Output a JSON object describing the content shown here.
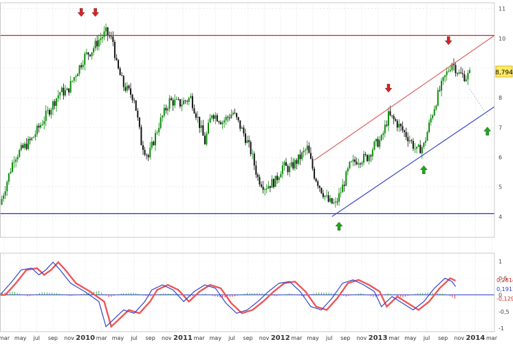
{
  "chart_data": [
    {
      "type": "candlestick",
      "ylim": [
        3.3,
        11.2
      ],
      "y_ticks": [
        "4",
        "5",
        "6",
        "7",
        "8",
        "9",
        "10",
        "11"
      ],
      "current_price": "8,794",
      "colors": {
        "up": "#0a8a0a",
        "down": "#111111",
        "resistance": "#cc2222",
        "support": "#1f2ecc",
        "channel_top": "#e06060",
        "channel_bottom": "#3a44cc",
        "signal_down": "#dd2222",
        "signal_up": "#1aaa1a"
      },
      "series_path": [
        [
          0,
          4.4
        ],
        [
          4,
          6.0
        ],
        [
          9,
          6.6
        ],
        [
          14,
          7.6
        ],
        [
          17,
          8.2
        ],
        [
          19,
          8.2
        ],
        [
          21,
          8.7
        ],
        [
          24,
          9.4
        ],
        [
          26,
          9.6
        ],
        [
          28,
          9.95
        ],
        [
          30,
          10.2
        ],
        [
          32,
          9.9
        ],
        [
          33,
          9.1
        ],
        [
          35,
          8.4
        ],
        [
          38,
          8.0
        ],
        [
          40,
          6.5
        ],
        [
          42,
          6.0
        ],
        [
          45,
          7.1
        ],
        [
          48,
          7.9
        ],
        [
          51,
          7.8
        ],
        [
          54,
          8.0
        ],
        [
          56,
          7.3
        ],
        [
          58,
          6.5
        ],
        [
          60,
          7.5
        ],
        [
          63,
          7.2
        ],
        [
          66,
          7.5
        ],
        [
          69,
          6.8
        ],
        [
          71,
          6.2
        ],
        [
          73,
          5.3
        ],
        [
          75,
          5.0
        ],
        [
          78,
          5.2
        ],
        [
          80,
          5.7
        ],
        [
          82,
          5.6
        ],
        [
          85,
          6.0
        ],
        [
          87,
          6.3
        ],
        [
          89,
          5.4
        ],
        [
          91,
          4.9
        ],
        [
          93,
          4.5
        ],
        [
          95,
          4.4
        ],
        [
          97,
          5.0
        ],
        [
          99,
          5.7
        ],
        [
          101,
          5.9
        ],
        [
          104,
          6.0
        ],
        [
          106,
          6.4
        ],
        [
          108,
          6.6
        ],
        [
          110,
          7.4
        ],
        [
          112,
          7.2
        ],
        [
          114,
          6.9
        ],
        [
          116,
          6.6
        ],
        [
          118,
          6.2
        ],
        [
          120,
          6.4
        ],
        [
          122,
          7.3
        ],
        [
          124,
          8.1
        ],
        [
          126,
          8.7
        ],
        [
          128,
          9.2
        ],
        [
          130,
          8.8
        ],
        [
          132,
          8.7
        ],
        [
          133,
          8.8
        ]
      ],
      "arrows": [
        {
          "dir": "down",
          "x": 23,
          "y": 10.85
        },
        {
          "dir": "down",
          "x": 27,
          "y": 10.85
        },
        {
          "dir": "down",
          "x": 110,
          "y": 8.3
        },
        {
          "dir": "down",
          "x": 127,
          "y": 9.9
        },
        {
          "dir": "up",
          "x": 96,
          "y": 3.7
        },
        {
          "dir": "up",
          "x": 120,
          "y": 5.6
        },
        {
          "dir": "up",
          "x": 138,
          "y": 6.9
        }
      ],
      "lines": [
        {
          "name": "resistance",
          "x1": 0,
          "y1": 10.1,
          "x2": 140,
          "y2": 10.1
        },
        {
          "name": "support",
          "x1": 0,
          "y1": 4.1,
          "x2": 140,
          "y2": 4.1
        },
        {
          "name": "channel_top",
          "x1": 89,
          "y1": 5.9,
          "x2": 140,
          "y2": 10.1
        },
        {
          "name": "channel_bottom",
          "x1": 94,
          "y1": 4.0,
          "x2": 140,
          "y2": 7.7
        }
      ]
    },
    {
      "type": "macd",
      "ylim": [
        -1.1,
        1.25
      ],
      "y_ticks": [
        "1",
        "0,5",
        "0",
        "-0,5",
        "-1"
      ],
      "labels": [
        "0,2814",
        "0,1911",
        "-0,129"
      ],
      "macd_path": [
        [
          0,
          0.0
        ],
        [
          3,
          0.35
        ],
        [
          6,
          0.75
        ],
        [
          9,
          0.8
        ],
        [
          11,
          0.6
        ],
        [
          13,
          0.75
        ],
        [
          15,
          0.98
        ],
        [
          17,
          0.75
        ],
        [
          20,
          0.35
        ],
        [
          24,
          0.1
        ],
        [
          28,
          -0.2
        ],
        [
          30,
          -0.95
        ],
        [
          32,
          -0.75
        ],
        [
          35,
          -0.45
        ],
        [
          38,
          -0.55
        ],
        [
          41,
          -0.2
        ],
        [
          43,
          0.15
        ],
        [
          46,
          0.3
        ],
        [
          49,
          0.15
        ],
        [
          52,
          -0.2
        ],
        [
          55,
          0.1
        ],
        [
          58,
          0.3
        ],
        [
          61,
          0.2
        ],
        [
          64,
          -0.25
        ],
        [
          67,
          -0.55
        ],
        [
          70,
          -0.45
        ],
        [
          73,
          -0.2
        ],
        [
          76,
          0.1
        ],
        [
          79,
          0.35
        ],
        [
          82,
          0.4
        ],
        [
          85,
          0.1
        ],
        [
          88,
          -0.35
        ],
        [
          91,
          -0.45
        ],
        [
          94,
          -0.1
        ],
        [
          97,
          0.35
        ],
        [
          100,
          0.45
        ],
        [
          103,
          0.3
        ],
        [
          106,
          0.1
        ],
        [
          108,
          -0.35
        ],
        [
          111,
          -0.05
        ],
        [
          114,
          -0.25
        ],
        [
          117,
          -0.45
        ],
        [
          120,
          -0.2
        ],
        [
          123,
          0.2
        ],
        [
          126,
          0.5
        ],
        [
          128,
          0.4
        ],
        [
          129,
          0.25
        ]
      ],
      "hist_path": [
        [
          0,
          0.05
        ],
        [
          4,
          0.1
        ],
        [
          8,
          -0.05
        ],
        [
          12,
          0.08
        ],
        [
          16,
          0.06
        ],
        [
          20,
          -0.04
        ],
        [
          24,
          0.05
        ],
        [
          28,
          0.12
        ],
        [
          31,
          -0.08
        ],
        [
          34,
          0.04
        ],
        [
          38,
          0.07
        ],
        [
          42,
          -0.06
        ],
        [
          46,
          0.05
        ],
        [
          50,
          0.03
        ],
        [
          54,
          -0.05
        ],
        [
          58,
          0.04
        ],
        [
          62,
          -0.08
        ],
        [
          66,
          -0.06
        ],
        [
          70,
          0.06
        ],
        [
          74,
          0.05
        ],
        [
          78,
          -0.04
        ],
        [
          82,
          0.05
        ],
        [
          86,
          -0.05
        ],
        [
          90,
          0.08
        ],
        [
          94,
          0.06
        ],
        [
          98,
          -0.05
        ],
        [
          102,
          0.06
        ],
        [
          106,
          -0.07
        ],
        [
          110,
          0.05
        ],
        [
          114,
          -0.08
        ],
        [
          118,
          0.05
        ],
        [
          122,
          0.07
        ],
        [
          126,
          0.03
        ],
        [
          129,
          -0.12
        ]
      ]
    }
  ],
  "x_axis": {
    "labels": [
      "mar",
      "may",
      "jul",
      "sep",
      "nov",
      "2010",
      "mar",
      "may",
      "jul",
      "sep",
      "nov",
      "2011",
      "mar",
      "may",
      "jul",
      "sep",
      "nov",
      "2012",
      "mar",
      "may",
      "jul",
      "sep",
      "nov",
      "2013",
      "mar",
      "may",
      "jul",
      "sep",
      "nov",
      "2014",
      "mar"
    ],
    "bold": [
      "2010",
      "2011",
      "2012",
      "2013",
      "2014"
    ]
  }
}
